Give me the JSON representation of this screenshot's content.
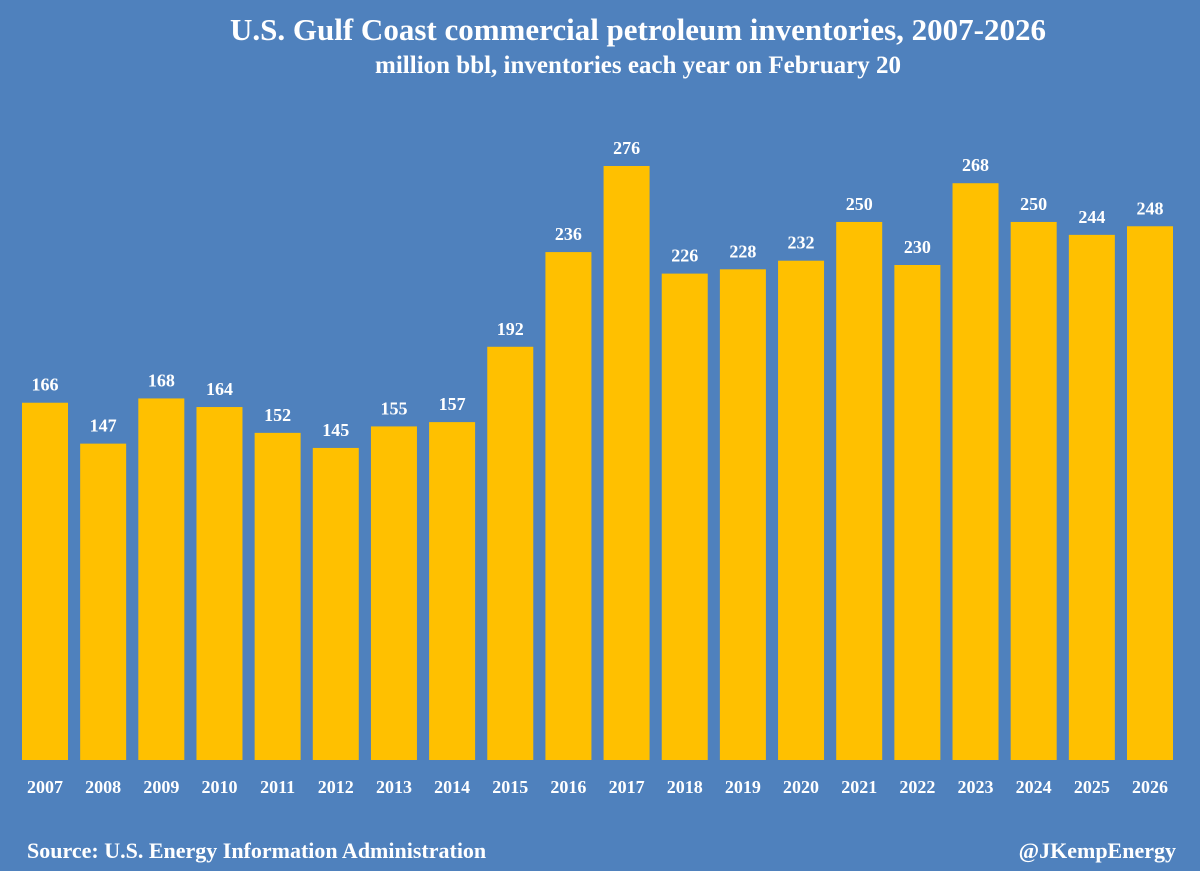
{
  "chart_data": {
    "type": "bar",
    "title": "U.S. Gulf  Coast commercial petroleum inventories, 2007-2026",
    "subtitle": "million bbl, inventories each year on February 20",
    "categories": [
      "2007",
      "2008",
      "2009",
      "2010",
      "2011",
      "2012",
      "2013",
      "2014",
      "2015",
      "2016",
      "2017",
      "2018",
      "2019",
      "2020",
      "2021",
      "2022",
      "2023",
      "2024",
      "2025",
      "2026"
    ],
    "values": [
      166,
      147,
      168,
      164,
      152,
      145,
      155,
      157,
      192,
      236,
      276,
      226,
      228,
      232,
      250,
      230,
      268,
      250,
      244,
      248
    ],
    "xlabel": "",
    "ylabel": "",
    "ylim": [
      0,
      276
    ],
    "grid": false,
    "data_labels": true,
    "colors": {
      "background": "#4f81bd",
      "bar": "#ffc000",
      "text": "#ffffff"
    }
  },
  "footer": {
    "source": "Source: U.S. Energy Information Administration",
    "handle": "@JKempEnergy"
  }
}
